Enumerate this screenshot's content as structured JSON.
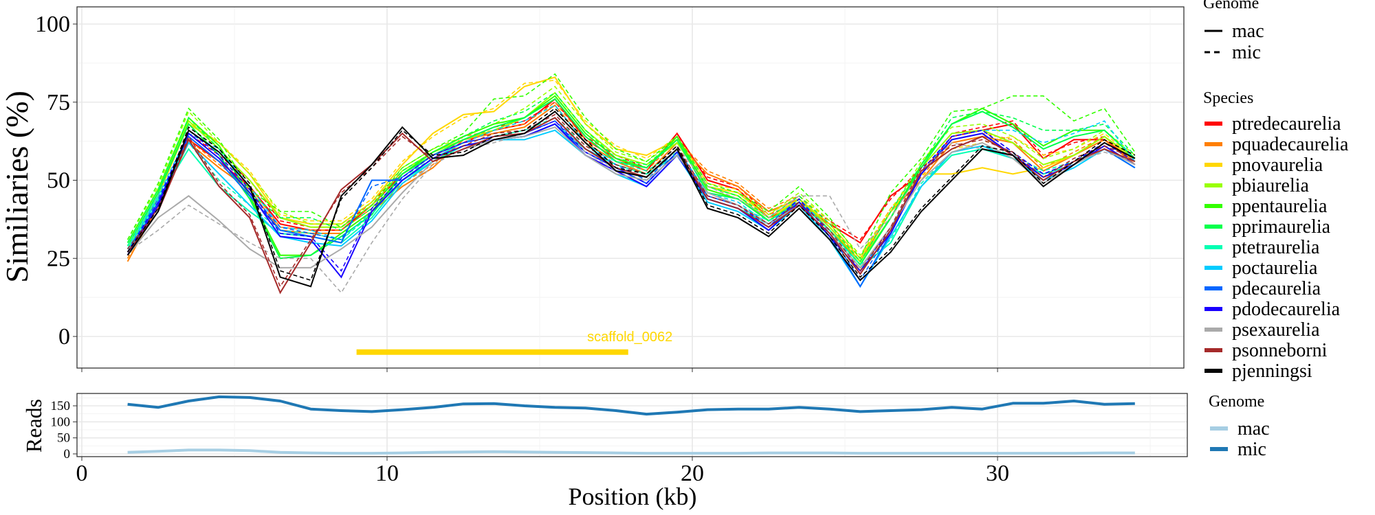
{
  "chart_data": [
    {
      "type": "line",
      "title": "",
      "xlabel": "Position (kb)",
      "ylabel": "Similiaries (%)",
      "xlim": [
        -0.5,
        36.5
      ],
      "ylim": [
        -10,
        105
      ],
      "xticks": [
        0,
        10,
        20,
        30
      ],
      "yticks": [
        0,
        25,
        50,
        75,
        100
      ],
      "grid": true,
      "x": [
        1.5,
        2.5,
        3.5,
        4.5,
        5.5,
        6.5,
        7.5,
        8.5,
        9.5,
        10.5,
        11.5,
        12.5,
        13.5,
        14.5,
        15.5,
        16.5,
        17.5,
        18.5,
        19.5,
        20.5,
        21.5,
        22.5,
        23.5,
        24.5,
        25.5,
        26.5,
        27.5,
        28.5,
        29.5,
        30.5,
        31.5,
        32.5,
        33.5,
        34.5
      ],
      "annotation": {
        "label": "scaffold_0062",
        "x_start": 9.0,
        "x_end": 17.9,
        "y": -5,
        "color": "#FFD700"
      },
      "legend_genome": {
        "title": "Genome",
        "placement": "right",
        "entries": [
          {
            "label": "mac",
            "linetype": "solid"
          },
          {
            "label": "mic",
            "linetype": "dashed"
          }
        ]
      },
      "legend_species": {
        "title": "Species",
        "placement": "right"
      },
      "series": [
        {
          "name": "ptredecaurelia",
          "color": "#FF0000",
          "mac": [
            26,
            42,
            63,
            56,
            48,
            36,
            34,
            34,
            42,
            52,
            58,
            62,
            66,
            68,
            76,
            63,
            57,
            53,
            65,
            50,
            47,
            38,
            42,
            36,
            30,
            45,
            52,
            64,
            66,
            68,
            57,
            63,
            63,
            56
          ],
          "mic": [
            27,
            44,
            65,
            58,
            50,
            37,
            35,
            35,
            43,
            53,
            59,
            63,
            67,
            69,
            75,
            64,
            58,
            54,
            64,
            51,
            48,
            39,
            43,
            37,
            31,
            44,
            54,
            65,
            67,
            69,
            58,
            62,
            64,
            57
          ]
        },
        {
          "name": "pquadecaurelia",
          "color": "#FF7F00",
          "mac": [
            24,
            42,
            62,
            54,
            47,
            34,
            33,
            33,
            40,
            48,
            54,
            63,
            65,
            67,
            74,
            62,
            56,
            52,
            62,
            52,
            48,
            40,
            44,
            34,
            24,
            40,
            50,
            62,
            64,
            62,
            53,
            58,
            63,
            55
          ],
          "mic": [
            25,
            43,
            63,
            55,
            48,
            35,
            34,
            34,
            41,
            49,
            55,
            64,
            66,
            68,
            75,
            63,
            57,
            53,
            63,
            53,
            49,
            41,
            45,
            35,
            25,
            41,
            51,
            63,
            65,
            63,
            54,
            59,
            64,
            56
          ]
        },
        {
          "name": "pnovaurelia",
          "color": "#FFD700",
          "mac": [
            28,
            45,
            68,
            62,
            52,
            38,
            36,
            36,
            43,
            55,
            65,
            71,
            72,
            80,
            83,
            68,
            60,
            58,
            63,
            48,
            46,
            38,
            44,
            36,
            25,
            40,
            52,
            52,
            54,
            52,
            54,
            58,
            64,
            56
          ],
          "mic": [
            29,
            46,
            69,
            62,
            53,
            39,
            37,
            37,
            44,
            56,
            64,
            70,
            73,
            81,
            82,
            69,
            61,
            57,
            64,
            49,
            47,
            39,
            45,
            37,
            26,
            41,
            53,
            60,
            62,
            64,
            58,
            60,
            65,
            57
          ]
        },
        {
          "name": "pbiaurelia",
          "color": "#99FF00",
          "mac": [
            29,
            46,
            69,
            60,
            50,
            38,
            35,
            35,
            42,
            53,
            59,
            63,
            66,
            70,
            78,
            66,
            58,
            55,
            62,
            48,
            45,
            37,
            44,
            35,
            24,
            38,
            54,
            65,
            66,
            62,
            55,
            58,
            64,
            57
          ],
          "mic": [
            31,
            48,
            72,
            62,
            52,
            40,
            36,
            36,
            43,
            54,
            60,
            64,
            68,
            73,
            80,
            68,
            59,
            56,
            63,
            49,
            46,
            39,
            46,
            37,
            26,
            40,
            56,
            67,
            68,
            64,
            57,
            60,
            66,
            58
          ]
        },
        {
          "name": "ppentaurelia",
          "color": "#33FF00",
          "mac": [
            30,
            47,
            70,
            61,
            45,
            26,
            26,
            33,
            40,
            52,
            59,
            64,
            68,
            70,
            77,
            65,
            57,
            54,
            64,
            47,
            44,
            37,
            43,
            34,
            23,
            38,
            55,
            68,
            73,
            68,
            61,
            66,
            66,
            57
          ],
          "mic": [
            31,
            49,
            73,
            63,
            47,
            40,
            40,
            35,
            42,
            54,
            60,
            65,
            76,
            77,
            84,
            70,
            60,
            56,
            64,
            49,
            46,
            40,
            48,
            38,
            25,
            46,
            57,
            72,
            73,
            77,
            77,
            69,
            73,
            59
          ]
        },
        {
          "name": "pprimaurelia",
          "color": "#00FF4C",
          "mac": [
            29,
            46,
            68,
            58,
            44,
            25,
            26,
            32,
            39,
            52,
            58,
            63,
            67,
            70,
            76,
            64,
            56,
            54,
            63,
            46,
            44,
            37,
            43,
            34,
            23,
            38,
            54,
            68,
            72,
            67,
            60,
            64,
            66,
            57
          ],
          "mic": [
            30,
            47,
            70,
            60,
            46,
            38,
            38,
            34,
            41,
            53,
            59,
            64,
            69,
            72,
            78,
            66,
            57,
            55,
            63,
            48,
            45,
            38,
            45,
            36,
            24,
            40,
            55,
            70,
            72,
            70,
            66,
            66,
            68,
            58
          ]
        },
        {
          "name": "ptetraurelia",
          "color": "#00FFB2",
          "mac": [
            28,
            44,
            60,
            48,
            40,
            33,
            32,
            30,
            38,
            50,
            56,
            61,
            63,
            64,
            68,
            60,
            55,
            52,
            58,
            44,
            41,
            36,
            42,
            33,
            22,
            30,
            48,
            58,
            60,
            57,
            52,
            55,
            60,
            54
          ],
          "mic": [
            29,
            45,
            62,
            50,
            42,
            34,
            33,
            31,
            39,
            51,
            57,
            62,
            64,
            66,
            70,
            61,
            56,
            53,
            59,
            45,
            42,
            37,
            43,
            34,
            23,
            31,
            49,
            59,
            61,
            58,
            53,
            56,
            61,
            55
          ]
        },
        {
          "name": "poctaurelia",
          "color": "#00CCFF",
          "mac": [
            27,
            43,
            62,
            52,
            42,
            32,
            30,
            29,
            37,
            49,
            56,
            60,
            63,
            63,
            66,
            58,
            52,
            48,
            58,
            43,
            40,
            34,
            42,
            31,
            16,
            32,
            48,
            59,
            61,
            57,
            50,
            54,
            60,
            54
          ],
          "mic": [
            28,
            45,
            65,
            60,
            48,
            35,
            34,
            31,
            40,
            50,
            57,
            62,
            66,
            69,
            74,
            62,
            55,
            50,
            60,
            46,
            43,
            36,
            44,
            34,
            22,
            35,
            52,
            64,
            66,
            66,
            62,
            65,
            69,
            56
          ]
        },
        {
          "name": "pdecaurelia",
          "color": "#0066FF",
          "mac": [
            26,
            43,
            64,
            56,
            45,
            34,
            32,
            30,
            50,
            50,
            57,
            61,
            63,
            64,
            68,
            59,
            54,
            49,
            59,
            44,
            41,
            35,
            43,
            32,
            16,
            33,
            52,
            63,
            65,
            58,
            51,
            55,
            60,
            54
          ],
          "mic": [
            27,
            44,
            65,
            57,
            46,
            35,
            33,
            31,
            48,
            51,
            58,
            62,
            64,
            65,
            69,
            60,
            55,
            50,
            60,
            45,
            42,
            36,
            44,
            33,
            18,
            34,
            53,
            64,
            66,
            59,
            52,
            56,
            61,
            55
          ]
        },
        {
          "name": "pdodecaurelia",
          "color": "#1A00FF",
          "mac": [
            26,
            42,
            65,
            57,
            46,
            32,
            31,
            19,
            40,
            50,
            57,
            61,
            63,
            64,
            68,
            58,
            53,
            48,
            58,
            44,
            41,
            34,
            43,
            32,
            21,
            33,
            52,
            63,
            65,
            58,
            51,
            55,
            61,
            55
          ],
          "mic": [
            27,
            43,
            66,
            58,
            47,
            33,
            32,
            21,
            41,
            51,
            58,
            62,
            64,
            65,
            69,
            59,
            54,
            49,
            59,
            45,
            42,
            35,
            44,
            33,
            22,
            34,
            53,
            64,
            66,
            59,
            52,
            56,
            62,
            56
          ]
        },
        {
          "name": "psexaurelia",
          "color": "#AAAAAA",
          "mac": [
            26,
            38,
            45,
            37,
            28,
            22,
            22,
            28,
            35,
            46,
            56,
            60,
            63,
            64,
            67,
            58,
            52,
            50,
            58,
            46,
            42,
            36,
            42,
            33,
            22,
            35,
            50,
            59,
            62,
            57,
            49,
            55,
            60,
            55
          ],
          "mic": [
            27,
            34,
            42,
            36,
            30,
            25,
            25,
            14,
            30,
            44,
            55,
            60,
            62,
            65,
            70,
            59,
            53,
            51,
            61,
            48,
            44,
            38,
            45,
            45,
            28,
            38,
            53,
            62,
            60,
            58,
            50,
            56,
            59,
            56
          ]
        },
        {
          "name": "psonneborni",
          "color": "#A52A2A",
          "mac": [
            27,
            40,
            63,
            48,
            38,
            14,
            30,
            47,
            55,
            65,
            56,
            60,
            64,
            65,
            70,
            60,
            54,
            51,
            60,
            44,
            41,
            35,
            42,
            33,
            20,
            34,
            53,
            60,
            64,
            58,
            50,
            56,
            60,
            56
          ],
          "mic": [
            28,
            41,
            64,
            49,
            39,
            16,
            31,
            46,
            54,
            64,
            57,
            61,
            65,
            66,
            71,
            61,
            55,
            52,
            61,
            45,
            42,
            36,
            43,
            34,
            21,
            35,
            54,
            61,
            63,
            59,
            51,
            57,
            61,
            57
          ]
        },
        {
          "name": "pjenningsi",
          "color": "#000000",
          "mac": [
            26,
            40,
            66,
            59,
            48,
            19,
            16,
            45,
            55,
            67,
            57,
            58,
            63,
            65,
            72,
            62,
            53,
            51,
            60,
            41,
            38,
            32,
            41,
            31,
            18,
            27,
            40,
            50,
            60,
            58,
            48,
            55,
            62,
            57
          ],
          "mic": [
            27,
            41,
            67,
            60,
            49,
            21,
            18,
            44,
            54,
            66,
            58,
            59,
            64,
            66,
            73,
            63,
            54,
            52,
            61,
            42,
            39,
            33,
            42,
            32,
            19,
            28,
            41,
            51,
            61,
            59,
            49,
            56,
            63,
            58
          ]
        }
      ]
    },
    {
      "type": "line",
      "ylabel": "Reads",
      "xlabel": "Position (kb)",
      "ylim": [
        -5,
        195
      ],
      "yticks": [
        0,
        50,
        100,
        150
      ],
      "xticks": [
        0,
        10,
        20,
        30
      ],
      "grid": true,
      "x": [
        1.5,
        2.5,
        3.5,
        4.5,
        5.5,
        6.5,
        7.5,
        8.5,
        9.5,
        10.5,
        11.5,
        12.5,
        13.5,
        14.5,
        15.5,
        16.5,
        17.5,
        18.5,
        19.5,
        20.5,
        21.5,
        22.5,
        23.5,
        24.5,
        25.5,
        26.5,
        27.5,
        28.5,
        29.5,
        30.5,
        31.5,
        32.5,
        33.5,
        34.5
      ],
      "legend": {
        "title": "Genome",
        "placement": "right"
      },
      "series": [
        {
          "name": "mac",
          "color": "#A6CEE3",
          "values": [
            5,
            8,
            12,
            12,
            10,
            5,
            3,
            2,
            2,
            3,
            5,
            6,
            7,
            6,
            5,
            4,
            3,
            2,
            2,
            2,
            2,
            3,
            3,
            3,
            2,
            2,
            2,
            2,
            2,
            2,
            2,
            2,
            3,
            3
          ]
        },
        {
          "name": "mic",
          "color": "#1F78B4",
          "values": [
            155,
            145,
            165,
            178,
            176,
            165,
            140,
            135,
            132,
            138,
            145,
            156,
            157,
            150,
            145,
            143,
            135,
            124,
            130,
            138,
            140,
            140,
            145,
            140,
            132,
            135,
            138,
            145,
            140,
            158,
            158,
            165,
            155,
            157
          ]
        }
      ]
    }
  ]
}
